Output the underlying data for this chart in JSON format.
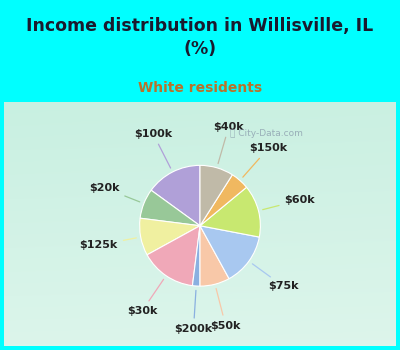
{
  "title": "Income distribution in Willisville, IL\n(%)",
  "subtitle": "White residents",
  "title_color": "#1a1a2e",
  "subtitle_color": "#b8722a",
  "bg_color": "#00ffff",
  "chart_box_color_top": "#e8f5f0",
  "chart_box_color_mid": "#d0eee0",
  "watermark": "City-Data.com",
  "labels": [
    "$100k",
    "$20k",
    "$125k",
    "$30k",
    "$200k",
    "$50k",
    "$75k",
    "$60k",
    "$150k",
    "$40k"
  ],
  "values": [
    15.0,
    8.0,
    10.0,
    15.0,
    2.0,
    8.0,
    14.0,
    14.0,
    5.0,
    9.0
  ],
  "colors": [
    "#b0a0d8",
    "#98c898",
    "#f0f0a0",
    "#f0a8b8",
    "#8ab0e0",
    "#f8c8a8",
    "#a8c8f0",
    "#c8e870",
    "#f0b860",
    "#c0baa8"
  ],
  "startangle": 90,
  "label_fontsize": 8,
  "title_fontsize": 12.5,
  "subtitle_fontsize": 10
}
